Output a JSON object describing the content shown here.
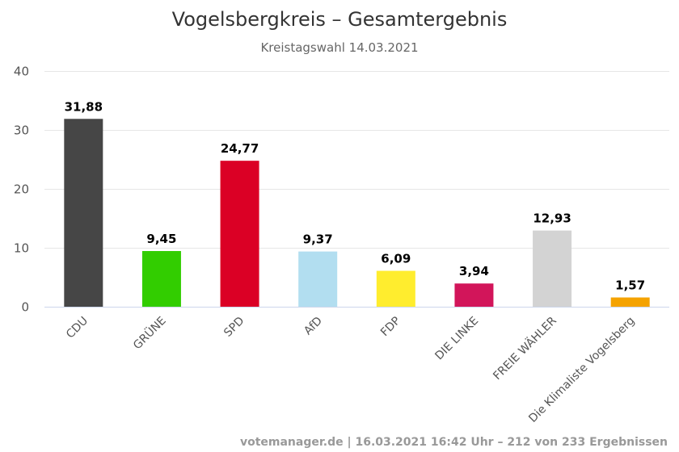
{
  "chart_data": {
    "type": "bar",
    "title": "Vogelsbergkreis – Gesamtergebnis",
    "subtitle": "Kreistagswahl 14.03.2021",
    "categories": [
      "CDU",
      "GRÜNE",
      "SPD",
      "AfD",
      "FDP",
      "DIE LINKE",
      "FREIE WÄHLER",
      "Die Klimaliste Vogelsberg"
    ],
    "values": [
      31.88,
      9.45,
      24.77,
      9.37,
      6.09,
      3.94,
      12.93,
      1.57
    ],
    "value_labels": [
      "31,88",
      "9,45",
      "24,77",
      "9,37",
      "6,09",
      "3,94",
      "12,93",
      "1,57"
    ],
    "colors": [
      "#464646",
      "#32cd00",
      "#db0025",
      "#b2def0",
      "#ffed2e",
      "#d2155a",
      "#d3d3d3",
      "#f5a300"
    ],
    "ylim": [
      0,
      40
    ],
    "yticks": [
      0,
      10,
      20,
      30,
      40
    ],
    "grid": true,
    "legend": "none",
    "xlabel": "",
    "ylabel": ""
  },
  "credits": "votemanager.de | 16.03.2021 16:42 Uhr – 212 von 233 Ergebnissen"
}
